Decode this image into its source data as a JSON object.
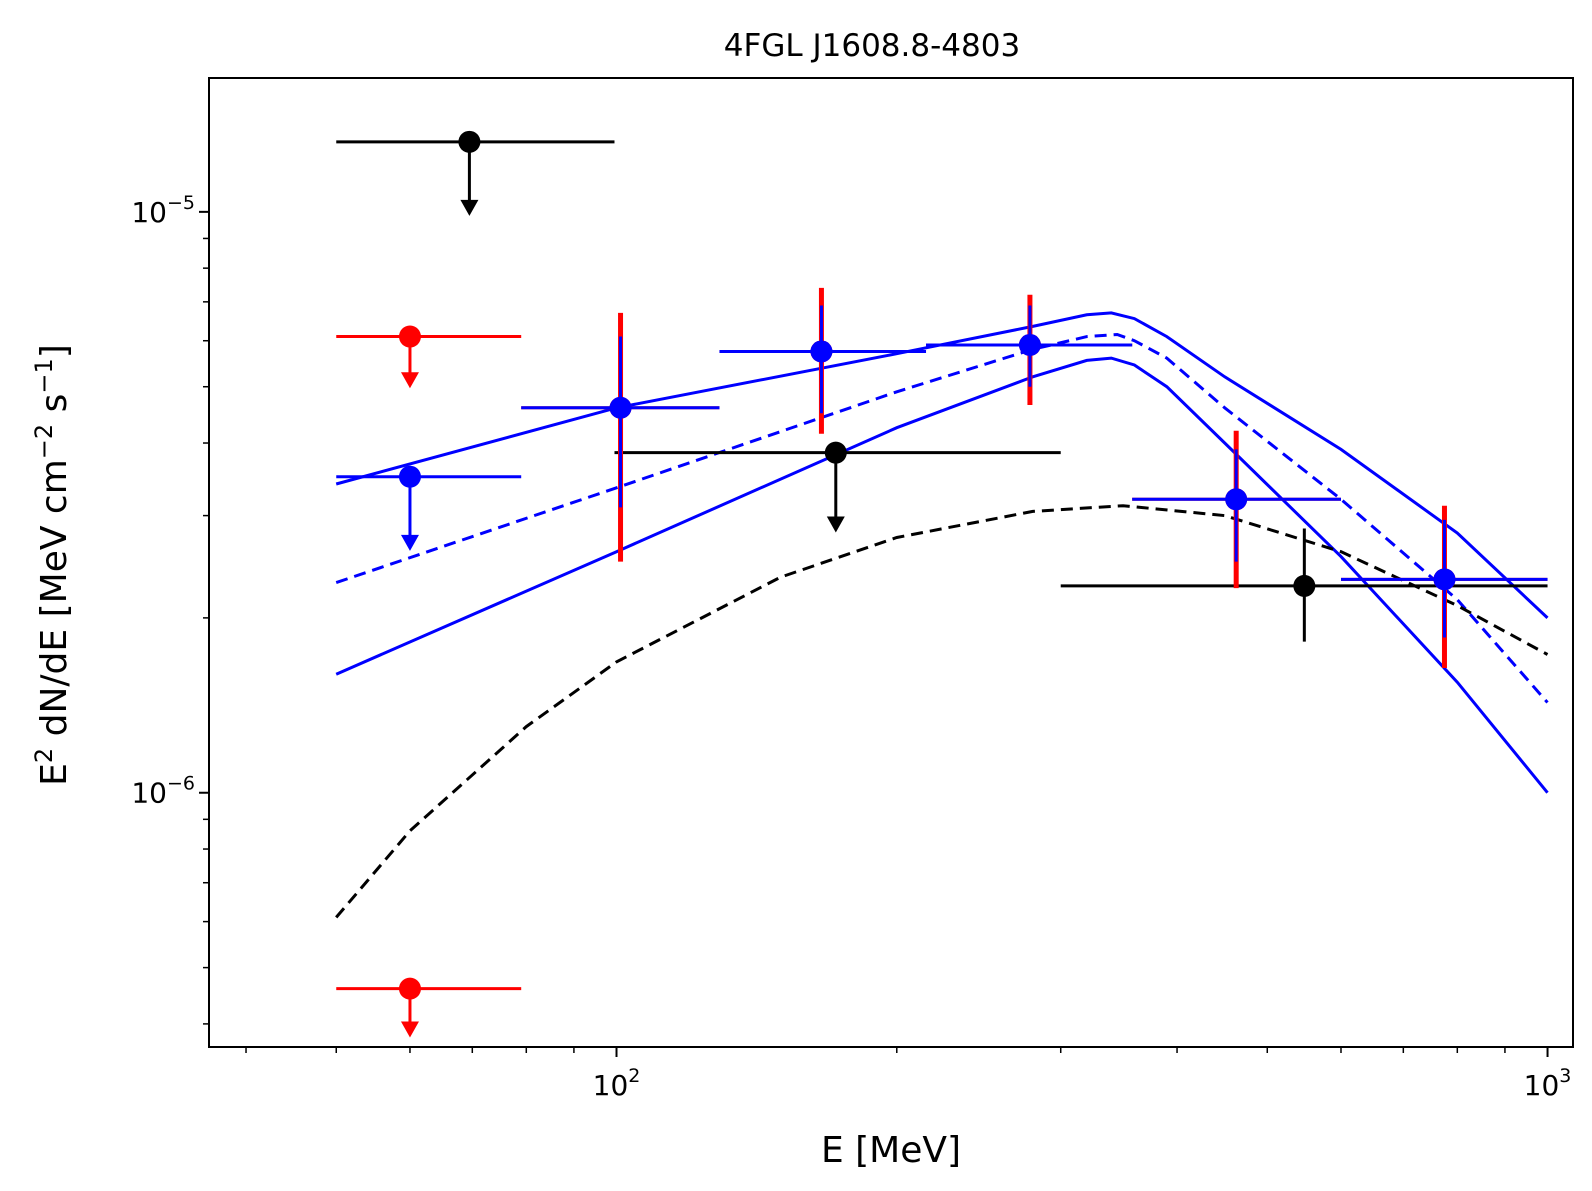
{
  "chart_data": {
    "type": "scatter",
    "title": "4FGL J1608.8-4803",
    "xlabel": "E [MeV]",
    "ylabel_parts": {
      "a": "E",
      "b": "2",
      "c": " dN/dE [MeV cm",
      "d": "−2",
      "e": " s",
      "f": "−1",
      "g": "]"
    },
    "xscale": "log",
    "yscale": "log",
    "xlim": [
      36.5,
      1065
    ],
    "ylim": [
      3.65e-07,
      1.7e-05
    ],
    "x_ticks": [
      {
        "value": 100,
        "base": "10",
        "exp": "2"
      },
      {
        "value": 1000,
        "base": "10",
        "exp": "3"
      }
    ],
    "y_ticks": [
      {
        "value": 1e-06,
        "base": "10",
        "exp": "−6"
      },
      {
        "value": 1e-05,
        "base": "10",
        "exp": "−5"
      }
    ],
    "colors": {
      "black": "#000000",
      "red": "#ff0000",
      "blue": "#0000ff"
    },
    "series": [
      {
        "name": "black-points",
        "color": "#000000",
        "points": [
          {
            "x": 69.5,
            "y": 1.32e-05,
            "xlo": 50,
            "xhi": 99.5,
            "ul": true,
            "arrow_to": 1e-05
          },
          {
            "x": 172,
            "y": 3.85e-06,
            "xlo": 99.5,
            "xhi": 300,
            "ul": true,
            "arrow_to": 2.85e-06
          },
          {
            "x": 548,
            "y": 2.27e-06,
            "xlo": 300,
            "xhi": 1000,
            "ylo": 1.82e-06,
            "yhi": 2.85e-06,
            "ul": false
          }
        ]
      },
      {
        "name": "red-points",
        "color": "#ff0000",
        "points": [
          {
            "x": 60,
            "y": 6.1e-06,
            "xlo": 50,
            "xhi": 79,
            "ul": true,
            "arrow_to": 5.05e-06
          },
          {
            "x": 60,
            "y": 4.6e-07,
            "xlo": 50,
            "xhi": 79,
            "ul": true,
            "arrow_to": 3.85e-07
          },
          {
            "x": 101,
            "y": 4.6e-06,
            "xlo": 79,
            "xhi": 129,
            "ylo": 2.5e-06,
            "yhi": 6.7e-06,
            "ul": false
          },
          {
            "x": 166,
            "y": 5.75e-06,
            "xlo": 129,
            "xhi": 215,
            "ylo": 4.15e-06,
            "yhi": 7.4e-06,
            "ul": false
          },
          {
            "x": 278,
            "y": 5.9e-06,
            "xlo": 215,
            "xhi": 358,
            "ylo": 4.65e-06,
            "yhi": 7.2e-06,
            "ul": false
          },
          {
            "x": 463,
            "y": 3.2e-06,
            "xlo": 358,
            "xhi": 600,
            "ylo": 2.25e-06,
            "yhi": 4.2e-06,
            "ul": false
          },
          {
            "x": 775,
            "y": 2.33e-06,
            "xlo": 600,
            "xhi": 1000,
            "ylo": 1.64e-06,
            "yhi": 3.12e-06,
            "ul": false
          }
        ]
      },
      {
        "name": "blue-points",
        "color": "#0000ff",
        "points": [
          {
            "x": 60,
            "y": 3.5e-06,
            "xlo": 50,
            "xhi": 79,
            "ul": true,
            "arrow_to": 2.65e-06
          },
          {
            "x": 101,
            "y": 4.6e-06,
            "xlo": 79,
            "xhi": 129,
            "ylo": 3.1e-06,
            "yhi": 6.1e-06,
            "ul": false
          },
          {
            "x": 166,
            "y": 5.75e-06,
            "xlo": 129,
            "xhi": 215,
            "ylo": 4.5e-06,
            "yhi": 6.9e-06,
            "ul": false
          },
          {
            "x": 278,
            "y": 5.9e-06,
            "xlo": 215,
            "xhi": 358,
            "ylo": 5e-06,
            "yhi": 6.9e-06,
            "ul": false
          },
          {
            "x": 463,
            "y": 3.2e-06,
            "xlo": 358,
            "xhi": 600,
            "ylo": 2.5e-06,
            "yhi": 3.9e-06,
            "ul": false
          },
          {
            "x": 775,
            "y": 2.33e-06,
            "xlo": 600,
            "xhi": 1000,
            "ylo": 1.85e-06,
            "yhi": 2.95e-06,
            "ul": false
          }
        ]
      }
    ],
    "curves": [
      {
        "name": "blue-upper-band",
        "color": "#0000ff",
        "dashed": false,
        "points": [
          [
            50,
            3.4e-06
          ],
          [
            100,
            4.6e-06
          ],
          [
            200,
            5.7e-06
          ],
          [
            280,
            6.35e-06
          ],
          [
            320,
            6.65e-06
          ],
          [
            340,
            6.7e-06
          ],
          [
            360,
            6.55e-06
          ],
          [
            390,
            6.1e-06
          ],
          [
            450,
            5.2e-06
          ],
          [
            600,
            3.9e-06
          ],
          [
            800,
            2.8e-06
          ],
          [
            1000,
            2e-06
          ]
        ]
      },
      {
        "name": "blue-model",
        "color": "#0000ff",
        "dashed": true,
        "points": [
          [
            50,
            2.3e-06
          ],
          [
            100,
            3.35e-06
          ],
          [
            200,
            4.9e-06
          ],
          [
            280,
            5.8e-06
          ],
          [
            320,
            6.1e-06
          ],
          [
            345,
            6.15e-06
          ],
          [
            360,
            6e-06
          ],
          [
            390,
            5.6e-06
          ],
          [
            450,
            4.6e-06
          ],
          [
            600,
            3.2e-06
          ],
          [
            800,
            2.15e-06
          ],
          [
            1000,
            1.43e-06
          ]
        ]
      },
      {
        "name": "blue-lower-band",
        "color": "#0000ff",
        "dashed": false,
        "points": [
          [
            50,
            1.6e-06
          ],
          [
            100,
            2.6e-06
          ],
          [
            200,
            4.25e-06
          ],
          [
            280,
            5.2e-06
          ],
          [
            320,
            5.55e-06
          ],
          [
            340,
            5.6e-06
          ],
          [
            360,
            5.45e-06
          ],
          [
            390,
            5e-06
          ],
          [
            450,
            4e-06
          ],
          [
            600,
            2.55e-06
          ],
          [
            800,
            1.55e-06
          ],
          [
            1000,
            1e-06
          ]
        ]
      },
      {
        "name": "black-model",
        "color": "#000000",
        "dashed": true,
        "points": [
          [
            50,
            6.1e-07
          ],
          [
            60,
            8.6e-07
          ],
          [
            80,
            1.3e-06
          ],
          [
            100,
            1.68e-06
          ],
          [
            150,
            2.35e-06
          ],
          [
            200,
            2.75e-06
          ],
          [
            280,
            3.05e-06
          ],
          [
            350,
            3.12e-06
          ],
          [
            450,
            3e-06
          ],
          [
            600,
            2.6e-06
          ],
          [
            800,
            2.1e-06
          ],
          [
            1000,
            1.73e-06
          ]
        ]
      }
    ]
  }
}
